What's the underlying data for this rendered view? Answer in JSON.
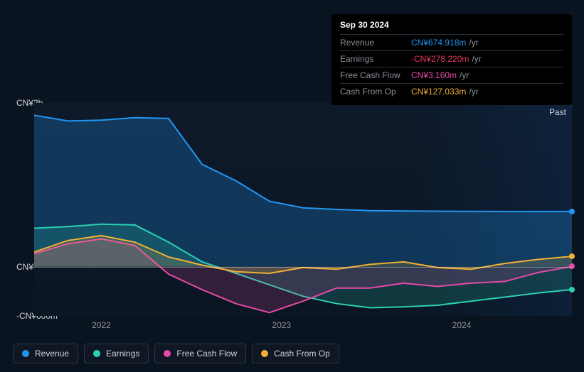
{
  "tooltip": {
    "date": "Sep 30 2024",
    "rows": [
      {
        "label": "Revenue",
        "value": "CN¥674.918m",
        "color": "#2196f3",
        "unit": "/yr"
      },
      {
        "label": "Earnings",
        "value": "-CN¥278.220m",
        "color": "#e6395a",
        "unit": "/yr"
      },
      {
        "label": "Free Cash Flow",
        "value": "CN¥3.160m",
        "color": "#e64aa8",
        "unit": "/yr"
      },
      {
        "label": "Cash From Op",
        "value": "CN¥127.033m",
        "color": "#f2b134",
        "unit": "/yr"
      }
    ]
  },
  "chart": {
    "type": "area",
    "background_color": "#0a1420",
    "plot_bg": "#0e1a2a",
    "grid_color": "rgba(255,255,255,0.35)",
    "axis_font_size": 12,
    "axis_color": "#d0d4da",
    "y_axis": {
      "ticks": [
        {
          "label": "CN¥2b",
          "value": 2000
        },
        {
          "label": "CN¥0",
          "value": 0
        },
        {
          "label": "-CN¥600m",
          "value": -600
        }
      ],
      "min": -600,
      "max": 2000
    },
    "x_axis": {
      "labels": [
        "2022",
        "2023",
        "2024"
      ],
      "positions": [
        0.125,
        0.46,
        0.795
      ],
      "past_label": "Past",
      "past_split": 0.71
    },
    "series": [
      {
        "name": "Revenue",
        "color": "#2196f3",
        "fill_opacity": 0.25,
        "line_width": 2,
        "points": [
          1850,
          1780,
          1790,
          1820,
          1810,
          1250,
          1050,
          800,
          720,
          700,
          685,
          680,
          678,
          676,
          675,
          675,
          674.9
        ]
      },
      {
        "name": "Earnings",
        "color": "#2ad1b4",
        "fill_opacity": 0.18,
        "line_width": 2,
        "points": [
          470,
          490,
          520,
          510,
          300,
          60,
          -80,
          -220,
          -360,
          -450,
          -500,
          -490,
          -470,
          -420,
          -370,
          -320,
          -278.2
        ]
      },
      {
        "name": "Free Cash Flow",
        "color": "#e64aa8",
        "fill_opacity": 0.18,
        "line_width": 2,
        "points": [
          160,
          280,
          340,
          260,
          -90,
          -280,
          -450,
          -560,
          -420,
          -260,
          -260,
          -200,
          -240,
          -200,
          -180,
          -70,
          3.2
        ]
      },
      {
        "name": "Cash From Op",
        "color": "#f2b134",
        "fill_opacity": 0.18,
        "line_width": 2,
        "points": [
          180,
          320,
          380,
          300,
          120,
          20,
          -60,
          -80,
          -10,
          -30,
          30,
          60,
          -10,
          -30,
          40,
          90,
          127
        ]
      }
    ],
    "end_markers": true
  },
  "legend": {
    "items": [
      {
        "label": "Revenue",
        "color": "#2196f3"
      },
      {
        "label": "Earnings",
        "color": "#2ad1b4"
      },
      {
        "label": "Free Cash Flow",
        "color": "#e64aa8"
      },
      {
        "label": "Cash From Op",
        "color": "#f2b134"
      }
    ]
  }
}
